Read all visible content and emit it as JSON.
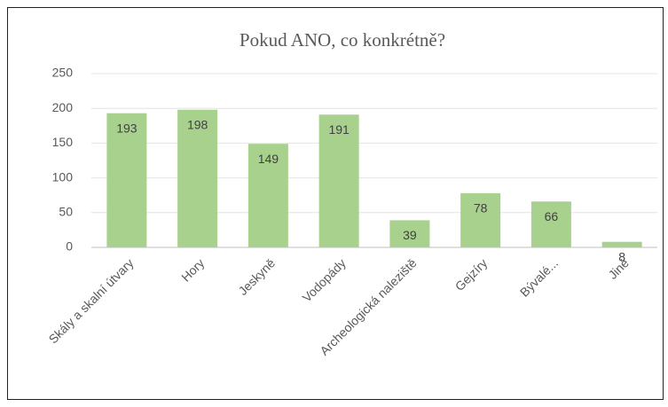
{
  "chart_data": {
    "type": "bar",
    "title": "Pokud ANO, co konkrétně?",
    "categories": [
      "Skály a skalní útvary",
      "Hory",
      "Jeskyně",
      "Vodopády",
      "Archeologická naleziště",
      "Gejzíry",
      "Bývalé...",
      "Jiné"
    ],
    "values": [
      193,
      198,
      149,
      191,
      39,
      78,
      66,
      8
    ],
    "color": "#a9d18e",
    "ylim": [
      0,
      250
    ],
    "yticks": [
      0,
      50,
      100,
      150,
      200,
      250
    ],
    "grid": true
  }
}
